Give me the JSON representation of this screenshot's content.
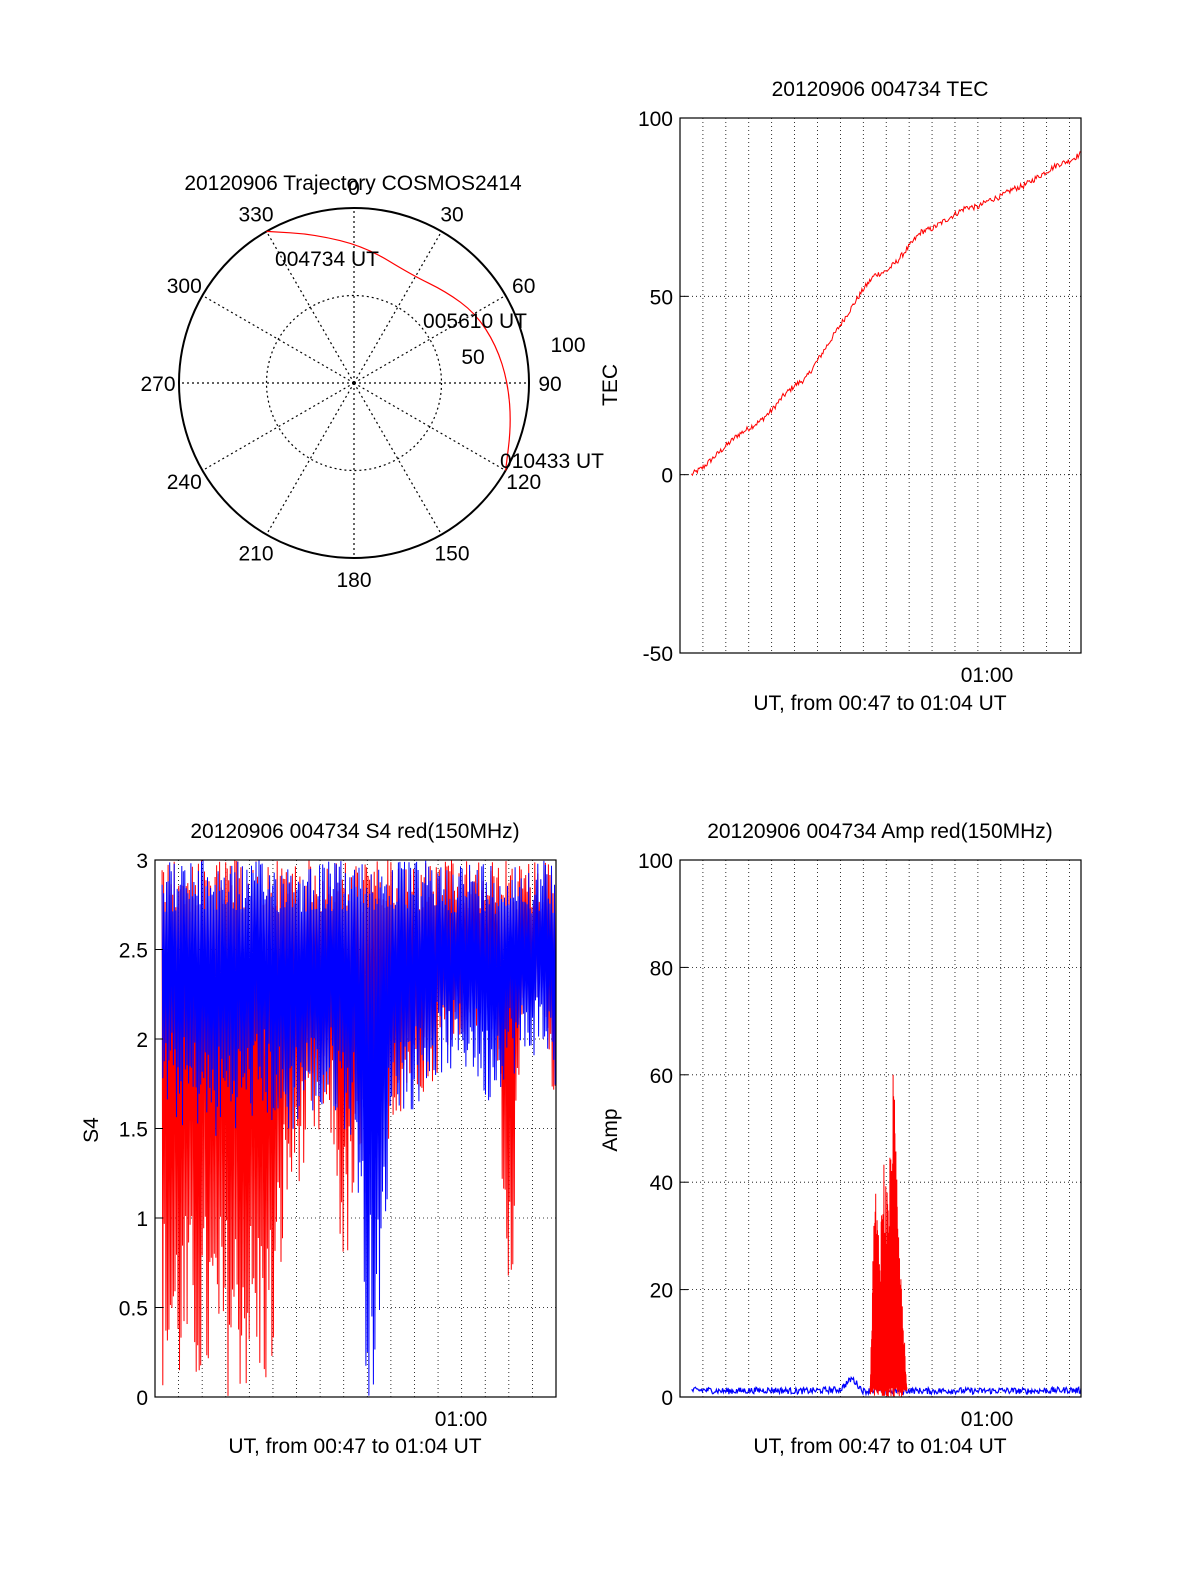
{
  "chart_data": [
    {
      "type": "polar-trajectory",
      "title": "20120906 Trajectory COSMOS2414",
      "azimuth_labels": [
        "0",
        "30",
        "60",
        "90",
        "120",
        "150",
        "180",
        "210",
        "240",
        "270",
        "300",
        "330"
      ],
      "radial_ticks": [
        "50",
        "100"
      ],
      "trajectory": [
        {
          "az": 330,
          "r": 100
        },
        {
          "az": 345,
          "r": 88
        },
        {
          "az": 5,
          "r": 78
        },
        {
          "az": 28,
          "r": 70
        },
        {
          "az": 45,
          "r": 74
        },
        {
          "az": 60,
          "r": 80
        },
        {
          "az": 75,
          "r": 84
        },
        {
          "az": 90,
          "r": 88
        },
        {
          "az": 105,
          "r": 93
        },
        {
          "az": 120,
          "r": 100
        }
      ],
      "annotations": [
        {
          "label": "004734 UT",
          "az": 330,
          "r": 100
        },
        {
          "label": "005610 UT",
          "az": 28,
          "r": 70
        },
        {
          "label": "010433 UT",
          "az": 120,
          "r": 100
        }
      ],
      "series_color": "#ff0000"
    },
    {
      "type": "line",
      "title": "20120906 004734 TEC",
      "xlabel": "UT, from 00:47 to 01:04 UT",
      "ylabel": "TEC",
      "x_tick_labels": [
        "01:00"
      ],
      "x_range_minutes": [
        47,
        64.5
      ],
      "ylim": [
        -50,
        100
      ],
      "y_ticks": [
        -50,
        0,
        50,
        100
      ],
      "grid": true,
      "series": [
        {
          "color": "#ff0000",
          "x": [
            47.5,
            48,
            48.5,
            49,
            49.5,
            50,
            50.5,
            51,
            51.5,
            52,
            52.5,
            53,
            53.5,
            54,
            54.5,
            55,
            55.5,
            56,
            56.5,
            57,
            57.5,
            58,
            58.5,
            59,
            59.5,
            60,
            60.5,
            61,
            61.5,
            62,
            62.5,
            63,
            63.5,
            64,
            64.5
          ],
          "y": [
            0,
            2,
            5,
            8,
            11,
            13,
            15,
            18,
            22,
            25,
            27,
            32,
            37,
            42,
            47,
            52,
            56,
            57,
            60,
            64,
            68,
            69,
            71,
            73,
            75,
            75,
            77,
            78,
            80,
            81,
            83,
            85,
            87,
            88,
            90
          ]
        }
      ]
    },
    {
      "type": "line",
      "title": "20120906 004734 S4 red(150MHz)",
      "xlabel": "UT, from 00:47 to 01:04 UT",
      "ylabel": "S4",
      "x_tick_labels": [
        "01:00"
      ],
      "x_range_minutes": [
        47,
        64
      ],
      "ylim": [
        0,
        3
      ],
      "y_ticks": [
        "0",
        "0.5",
        "1",
        "1.5",
        "2",
        "2.5",
        "3"
      ],
      "grid": true,
      "series": [
        {
          "color": "#ff0000",
          "x": [
            47.3,
            48,
            48.5,
            49,
            49.5,
            50,
            50.5,
            51,
            51.5,
            52,
            52.5,
            53,
            53.5,
            54,
            54.5,
            55,
            55.5,
            56,
            56.5,
            57,
            57.5,
            58,
            58.5,
            59,
            59.5,
            60,
            60.5,
            61,
            61.5,
            62,
            62.5,
            63,
            63.5,
            64
          ],
          "y_low": [
            0,
            0,
            0,
            0,
            0,
            0,
            0,
            0,
            0,
            0,
            0.9,
            1.2,
            1.2,
            1.4,
            1.4,
            0.6,
            1.0,
            1.1,
            1.2,
            1.5,
            1.6,
            1.7,
            1.7,
            1.8,
            2.0,
            2.0,
            2.0,
            2.1,
            1.9,
            0.0,
            2.1,
            2.1,
            2.1,
            1.1
          ],
          "y_high": [
            3,
            3,
            3,
            3,
            3,
            3,
            3,
            3,
            3,
            3,
            3,
            3,
            3,
            3,
            3,
            3,
            3,
            3,
            3,
            3,
            3,
            3,
            3,
            3,
            3,
            3,
            3,
            3,
            3,
            3,
            3,
            3,
            3,
            3
          ]
        },
        {
          "color": "#0000ff",
          "x": [
            47.3,
            48,
            48.5,
            49,
            49.5,
            50,
            50.5,
            51,
            51.5,
            52,
            52.5,
            53,
            53.5,
            54,
            54.5,
            55,
            55.5,
            56,
            56.5,
            57,
            57.5,
            58,
            58.5,
            59,
            59.5,
            60,
            60.5,
            61,
            61.5,
            62,
            62.5,
            63,
            63.5,
            64
          ],
          "y_low": [
            1.6,
            1.5,
            1.5,
            1.5,
            1.4,
            1.5,
            1.5,
            1.5,
            1.6,
            1.5,
            1.4,
            1.5,
            1.6,
            1.5,
            1.6,
            1.5,
            1.4,
            0.0,
            0.0,
            1.6,
            1.6,
            1.6,
            1.7,
            1.8,
            1.8,
            1.8,
            1.8,
            1.6,
            1.7,
            1.8,
            1.8,
            1.9,
            1.9,
            1.7
          ],
          "y_high": [
            3,
            3,
            3,
            3,
            3,
            3,
            3,
            3,
            3,
            3,
            3,
            3,
            3,
            3,
            3,
            3,
            3,
            3,
            3,
            3,
            3,
            3,
            3,
            3,
            3,
            3,
            3,
            3,
            3,
            3,
            3,
            3,
            3,
            3
          ]
        }
      ]
    },
    {
      "type": "line",
      "title": "20120906 004734 Amp red(150MHz)",
      "xlabel": "UT, from 00:47 to 01:04 UT",
      "ylabel": "Amp",
      "x_tick_labels": [
        "01:00"
      ],
      "x_range_minutes": [
        47,
        64.5
      ],
      "ylim": [
        0,
        100
      ],
      "y_ticks": [
        0,
        20,
        40,
        60,
        80,
        100
      ],
      "grid": true,
      "series": [
        {
          "color": "#0000ff",
          "x": [
            47.5,
            48,
            49,
            50,
            51,
            52,
            53,
            54,
            54.5,
            55,
            55.5,
            56,
            57,
            58,
            59,
            60,
            61,
            62,
            63,
            64,
            64.5
          ],
          "y": [
            1.2,
            1.3,
            1.1,
            1.2,
            1.3,
            1.1,
            1.2,
            1.4,
            3.5,
            1.1,
            1.2,
            1.1,
            1.2,
            1.1,
            1.2,
            1.1,
            1.2,
            1.1,
            1.2,
            1.3,
            1.2
          ]
        },
        {
          "color": "#ff0000",
          "x": [
            55.3,
            55.5,
            55.7,
            55.9,
            56.1,
            56.3,
            56.5,
            56.7,
            56.9
          ],
          "y": [
            3,
            42,
            30,
            45,
            38,
            61,
            44,
            20,
            2
          ]
        }
      ]
    }
  ]
}
